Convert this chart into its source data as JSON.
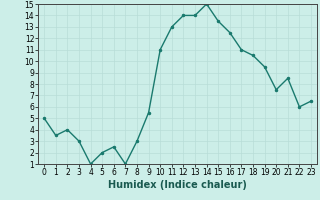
{
  "x": [
    0,
    1,
    2,
    3,
    4,
    5,
    6,
    7,
    8,
    9,
    10,
    11,
    12,
    13,
    14,
    15,
    16,
    17,
    18,
    19,
    20,
    21,
    22,
    23
  ],
  "y": [
    5,
    3.5,
    4,
    3,
    1,
    2,
    2.5,
    1,
    3,
    5.5,
    11,
    13,
    14,
    14,
    15,
    13.5,
    12.5,
    11,
    10.5,
    9.5,
    7.5,
    8.5,
    6,
    6.5
  ],
  "xlabel": "Humidex (Indice chaleur)",
  "line_color": "#1a7a6e",
  "bg_color": "#cceee8",
  "grid_major_color": "#b8ddd8",
  "grid_minor_color": "#d0ecea",
  "ylim": [
    1,
    15
  ],
  "xlim": [
    -0.5,
    23.5
  ],
  "yticks": [
    1,
    2,
    3,
    4,
    5,
    6,
    7,
    8,
    9,
    10,
    11,
    12,
    13,
    14,
    15
  ],
  "xticks": [
    0,
    1,
    2,
    3,
    4,
    5,
    6,
    7,
    8,
    9,
    10,
    11,
    12,
    13,
    14,
    15,
    16,
    17,
    18,
    19,
    20,
    21,
    22,
    23
  ],
  "tick_fontsize": 5.5,
  "xlabel_fontsize": 7
}
